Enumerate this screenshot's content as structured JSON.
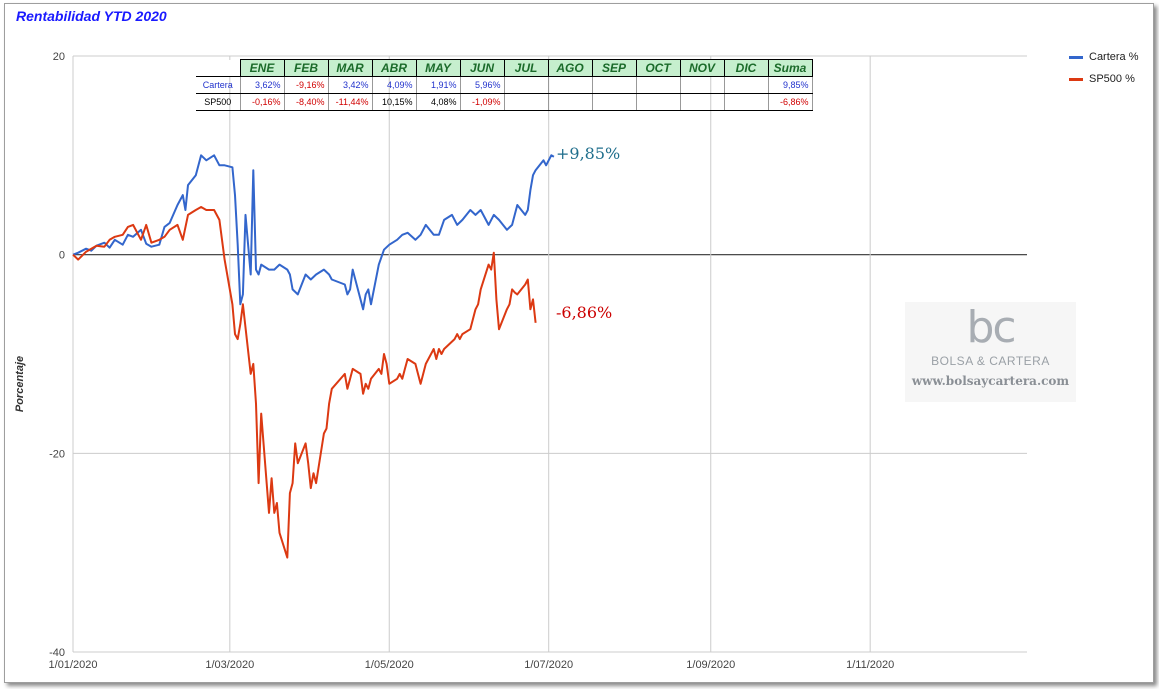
{
  "chart_data": {
    "type": "line",
    "title": "Rentabilidad YTD 2020",
    "ylabel": "Porcentaje",
    "xlabel": "",
    "ylim": [
      -40,
      20
    ],
    "ytick_values": [
      20,
      0,
      -20,
      -40
    ],
    "xlim": [
      "2020-01-01",
      "2020-12-31"
    ],
    "xtick_labels": [
      "1/01/2020",
      "1/03/2020",
      "1/05/2020",
      "1/07/2020",
      "1/09/2020",
      "1/11/2020"
    ],
    "xtick_dates": [
      "2020-01-01",
      "2020-03-01",
      "2020-05-01",
      "2020-07-01",
      "2020-09-01",
      "2020-11-01"
    ],
    "grid": true,
    "legend_position": "top-right",
    "series": [
      {
        "name": "Cartera %",
        "color": "#3366cc",
        "final_label": "+9,85%",
        "final_label_color": "#1f6e8c",
        "points": [
          [
            "2020-01-01",
            0
          ],
          [
            "2020-01-03",
            0.2
          ],
          [
            "2020-01-06",
            0.6
          ],
          [
            "2020-01-08",
            0.4
          ],
          [
            "2020-01-10",
            0.9
          ],
          [
            "2020-01-13",
            1.2
          ],
          [
            "2020-01-15",
            0.7
          ],
          [
            "2020-01-17",
            1.5
          ],
          [
            "2020-01-20",
            1.0
          ],
          [
            "2020-01-22",
            2.0
          ],
          [
            "2020-01-24",
            1.8
          ],
          [
            "2020-01-27",
            2.5
          ],
          [
            "2020-01-29",
            1.1
          ],
          [
            "2020-01-31",
            0.8
          ],
          [
            "2020-02-03",
            1.0
          ],
          [
            "2020-02-05",
            2.8
          ],
          [
            "2020-02-07",
            3.2
          ],
          [
            "2020-02-10",
            5.0
          ],
          [
            "2020-02-12",
            6.0
          ],
          [
            "2020-02-13",
            4.5
          ],
          [
            "2020-02-14",
            7.0
          ],
          [
            "2020-02-17",
            8.0
          ],
          [
            "2020-02-19",
            10.0
          ],
          [
            "2020-02-21",
            9.5
          ],
          [
            "2020-02-24",
            10.0
          ],
          [
            "2020-02-26",
            9.0
          ],
          [
            "2020-02-28",
            9.0
          ],
          [
            "2020-03-02",
            8.8
          ],
          [
            "2020-03-03",
            6.0
          ],
          [
            "2020-03-04",
            1.0
          ],
          [
            "2020-03-05",
            -5.0
          ],
          [
            "2020-03-06",
            -4.0
          ],
          [
            "2020-03-07",
            4.0
          ],
          [
            "2020-03-09",
            -2.0
          ],
          [
            "2020-03-10",
            8.5
          ],
          [
            "2020-03-11",
            -1.5
          ],
          [
            "2020-03-12",
            -2.0
          ],
          [
            "2020-03-13",
            -1.0
          ],
          [
            "2020-03-16",
            -1.5
          ],
          [
            "2020-03-18",
            -1.5
          ],
          [
            "2020-03-20",
            -1.0
          ],
          [
            "2020-03-23",
            -1.5
          ],
          [
            "2020-03-24",
            -2.0
          ],
          [
            "2020-03-25",
            -3.5
          ],
          [
            "2020-03-27",
            -4.0
          ],
          [
            "2020-03-30",
            -2.0
          ],
          [
            "2020-04-01",
            -2.5
          ],
          [
            "2020-04-03",
            -2.0
          ],
          [
            "2020-04-06",
            -1.5
          ],
          [
            "2020-04-08",
            -2.0
          ],
          [
            "2020-04-09",
            -2.5
          ],
          [
            "2020-04-14",
            -3.0
          ],
          [
            "2020-04-15",
            -4.0
          ],
          [
            "2020-04-16",
            -3.5
          ],
          [
            "2020-04-17",
            -1.5
          ],
          [
            "2020-04-20",
            -4.5
          ],
          [
            "2020-04-21",
            -5.5
          ],
          [
            "2020-04-22",
            -4.0
          ],
          [
            "2020-04-23",
            -3.5
          ],
          [
            "2020-04-24",
            -5.0
          ],
          [
            "2020-04-27",
            -1.0
          ],
          [
            "2020-04-29",
            0.5
          ],
          [
            "2020-05-01",
            1.0
          ],
          [
            "2020-05-04",
            1.5
          ],
          [
            "2020-05-06",
            2.0
          ],
          [
            "2020-05-08",
            2.2
          ],
          [
            "2020-05-11",
            1.5
          ],
          [
            "2020-05-13",
            2.0
          ],
          [
            "2020-05-15",
            3.0
          ],
          [
            "2020-05-18",
            2.0
          ],
          [
            "2020-05-20",
            2.0
          ],
          [
            "2020-05-22",
            3.5
          ],
          [
            "2020-05-25",
            4.0
          ],
          [
            "2020-05-27",
            3.0
          ],
          [
            "2020-05-29",
            3.5
          ],
          [
            "2020-06-01",
            4.5
          ],
          [
            "2020-06-03",
            4.0
          ],
          [
            "2020-06-05",
            4.5
          ],
          [
            "2020-06-08",
            3.0
          ],
          [
            "2020-06-10",
            4.0
          ],
          [
            "2020-06-12",
            3.5
          ],
          [
            "2020-06-15",
            2.5
          ],
          [
            "2020-06-17",
            3.0
          ],
          [
            "2020-06-19",
            5.0
          ],
          [
            "2020-06-22",
            4.0
          ],
          [
            "2020-06-23",
            4.5
          ],
          [
            "2020-06-24",
            6.5
          ],
          [
            "2020-06-25",
            8.0
          ],
          [
            "2020-06-26",
            8.5
          ],
          [
            "2020-06-29",
            9.5
          ],
          [
            "2020-06-30",
            9.0
          ],
          [
            "2020-07-01",
            9.5
          ],
          [
            "2020-07-02",
            10.0
          ],
          [
            "2020-07-03",
            9.85
          ]
        ]
      },
      {
        "name": "SP500 %",
        "color": "#dc3912",
        "final_label": "-6,86%",
        "final_label_color": "#cc0000",
        "points": [
          [
            "2020-01-01",
            0
          ],
          [
            "2020-01-03",
            -0.5
          ],
          [
            "2020-01-06",
            0.3
          ],
          [
            "2020-01-08",
            0.6
          ],
          [
            "2020-01-10",
            0.9
          ],
          [
            "2020-01-13",
            0.8
          ],
          [
            "2020-01-15",
            1.5
          ],
          [
            "2020-01-17",
            1.8
          ],
          [
            "2020-01-20",
            2.0
          ],
          [
            "2020-01-22",
            2.8
          ],
          [
            "2020-01-24",
            3.0
          ],
          [
            "2020-01-27",
            1.5
          ],
          [
            "2020-01-29",
            3.0
          ],
          [
            "2020-01-31",
            1.2
          ],
          [
            "2020-02-03",
            1.5
          ],
          [
            "2020-02-05",
            1.8
          ],
          [
            "2020-02-07",
            2.5
          ],
          [
            "2020-02-10",
            3.0
          ],
          [
            "2020-02-12",
            1.5
          ],
          [
            "2020-02-14",
            4.0
          ],
          [
            "2020-02-17",
            4.5
          ],
          [
            "2020-02-19",
            4.8
          ],
          [
            "2020-02-21",
            4.5
          ],
          [
            "2020-02-24",
            4.5
          ],
          [
            "2020-02-26",
            3.5
          ],
          [
            "2020-02-28",
            -0.5
          ],
          [
            "2020-03-02",
            -5.0
          ],
          [
            "2020-03-03",
            -8.0
          ],
          [
            "2020-03-04",
            -8.5
          ],
          [
            "2020-03-05",
            -7.0
          ],
          [
            "2020-03-06",
            -5.0
          ],
          [
            "2020-03-09",
            -12.0
          ],
          [
            "2020-03-10",
            -11.0
          ],
          [
            "2020-03-11",
            -15.0
          ],
          [
            "2020-03-12",
            -23.0
          ],
          [
            "2020-03-13",
            -16.0
          ],
          [
            "2020-03-16",
            -26.0
          ],
          [
            "2020-03-17",
            -22.5
          ],
          [
            "2020-03-18",
            -26.0
          ],
          [
            "2020-03-19",
            -25.0
          ],
          [
            "2020-03-20",
            -28.0
          ],
          [
            "2020-03-23",
            -30.5
          ],
          [
            "2020-03-24",
            -24.0
          ],
          [
            "2020-03-25",
            -23.0
          ],
          [
            "2020-03-26",
            -19.0
          ],
          [
            "2020-03-27",
            -21.0
          ],
          [
            "2020-03-30",
            -19.0
          ],
          [
            "2020-03-31",
            -21.0
          ],
          [
            "2020-04-01",
            -23.5
          ],
          [
            "2020-04-02",
            -22.0
          ],
          [
            "2020-04-03",
            -23.0
          ],
          [
            "2020-04-06",
            -18.0
          ],
          [
            "2020-04-07",
            -17.5
          ],
          [
            "2020-04-08",
            -15.0
          ],
          [
            "2020-04-09",
            -13.5
          ],
          [
            "2020-04-14",
            -12.0
          ],
          [
            "2020-04-15",
            -13.5
          ],
          [
            "2020-04-16",
            -12.5
          ],
          [
            "2020-04-17",
            -11.5
          ],
          [
            "2020-04-20",
            -12.0
          ],
          [
            "2020-04-21",
            -14.0
          ],
          [
            "2020-04-22",
            -13.0
          ],
          [
            "2020-04-23",
            -13.5
          ],
          [
            "2020-04-24",
            -12.5
          ],
          [
            "2020-04-27",
            -11.5
          ],
          [
            "2020-04-28",
            -12.0
          ],
          [
            "2020-04-29",
            -10.0
          ],
          [
            "2020-04-30",
            -11.0
          ],
          [
            "2020-05-01",
            -13.0
          ],
          [
            "2020-05-04",
            -12.5
          ],
          [
            "2020-05-05",
            -12.0
          ],
          [
            "2020-05-06",
            -12.5
          ],
          [
            "2020-05-07",
            -11.5
          ],
          [
            "2020-05-08",
            -10.5
          ],
          [
            "2020-05-11",
            -11.0
          ],
          [
            "2020-05-12",
            -12.0
          ],
          [
            "2020-05-13",
            -13.0
          ],
          [
            "2020-05-14",
            -12.0
          ],
          [
            "2020-05-15",
            -11.0
          ],
          [
            "2020-05-18",
            -9.5
          ],
          [
            "2020-05-19",
            -10.5
          ],
          [
            "2020-05-20",
            -9.5
          ],
          [
            "2020-05-21",
            -10.0
          ],
          [
            "2020-05-22",
            -9.5
          ],
          [
            "2020-05-26",
            -8.5
          ],
          [
            "2020-05-27",
            -8.0
          ],
          [
            "2020-05-28",
            -8.5
          ],
          [
            "2020-05-29",
            -8.0
          ],
          [
            "2020-06-01",
            -7.5
          ],
          [
            "2020-06-02",
            -6.5
          ],
          [
            "2020-06-03",
            -5.5
          ],
          [
            "2020-06-04",
            -5.0
          ],
          [
            "2020-06-05",
            -3.5
          ],
          [
            "2020-06-08",
            -1.0
          ],
          [
            "2020-06-09",
            -1.5
          ],
          [
            "2020-06-10",
            0.2
          ],
          [
            "2020-06-11",
            -4.5
          ],
          [
            "2020-06-12",
            -7.5
          ],
          [
            "2020-06-15",
            -5.5
          ],
          [
            "2020-06-16",
            -5.0
          ],
          [
            "2020-06-17",
            -3.5
          ],
          [
            "2020-06-18",
            -3.8
          ],
          [
            "2020-06-19",
            -4.0
          ],
          [
            "2020-06-22",
            -3.0
          ],
          [
            "2020-06-23",
            -2.5
          ],
          [
            "2020-06-24",
            -5.5
          ],
          [
            "2020-06-25",
            -4.5
          ],
          [
            "2020-06-26",
            -6.86
          ]
        ]
      }
    ]
  },
  "monthly_table": {
    "headers": [
      "ENE",
      "FEB",
      "MAR",
      "ABR",
      "MAY",
      "JUN",
      "JUL",
      "AGO",
      "SEP",
      "OCT",
      "NOV",
      "DIC",
      "Suma"
    ],
    "rows": [
      {
        "label": "Cartera",
        "values": [
          "3,62%",
          "-9,16%",
          "3,42%",
          "4,09%",
          "1,91%",
          "5,96%",
          "",
          "",
          "",
          "",
          "",
          "",
          "9,85%"
        ]
      },
      {
        "label": "SP500",
        "values": [
          "-0,16%",
          "-8,40%",
          "-11,44%",
          "10,15%",
          "4,08%",
          "-1,09%",
          "",
          "",
          "",
          "",
          "",
          "",
          "-6,86%"
        ]
      }
    ]
  },
  "watermark": {
    "logo": "bc",
    "name": "BOLSA & CARTERA",
    "url": "www.bolsaycartera.com"
  }
}
